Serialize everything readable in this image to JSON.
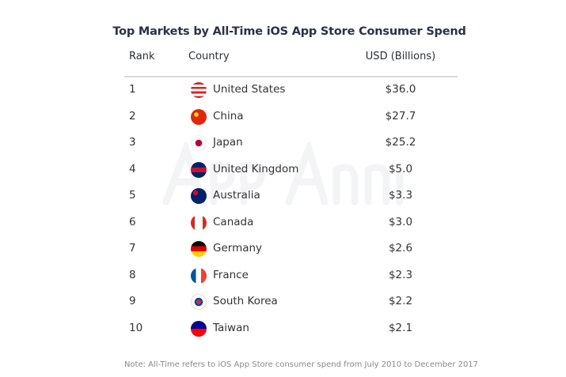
{
  "title": "Top Markets by All-Time iOS App Store Consumer Spend",
  "headers": {
    "rank": "Rank",
    "country": "Country",
    "usd": "USD (Billions)"
  },
  "watermark": "App Annie",
  "rows": [
    {
      "rank": "1",
      "country": "United States",
      "value": "$36.0",
      "flag": "us-flag"
    },
    {
      "rank": "2",
      "country": "China",
      "value": "$27.7",
      "flag": "cn-flag"
    },
    {
      "rank": "3",
      "country": "Japan",
      "value": "$25.2",
      "flag": "jp-flag"
    },
    {
      "rank": "4",
      "country": "United Kingdom",
      "value": "$5.0",
      "flag": "gb-flag"
    },
    {
      "rank": "5",
      "country": "Australia",
      "value": "$3.3",
      "flag": "au-flag"
    },
    {
      "rank": "6",
      "country": "Canada",
      "value": "$3.0",
      "flag": "ca-flag"
    },
    {
      "rank": "7",
      "country": "Germany",
      "value": "$2.6",
      "flag": "de-flag"
    },
    {
      "rank": "8",
      "country": "France",
      "value": "$2.3",
      "flag": "fr-flag"
    },
    {
      "rank": "9",
      "country": "South Korea",
      "value": "$2.2",
      "flag": "kr-flag"
    },
    {
      "rank": "10",
      "country": "Taiwan",
      "value": "$2.1",
      "flag": "tw-flag"
    }
  ],
  "note": "Note: All-Time refers to iOS App Store consumer spend from July 2010 to December 2017"
}
